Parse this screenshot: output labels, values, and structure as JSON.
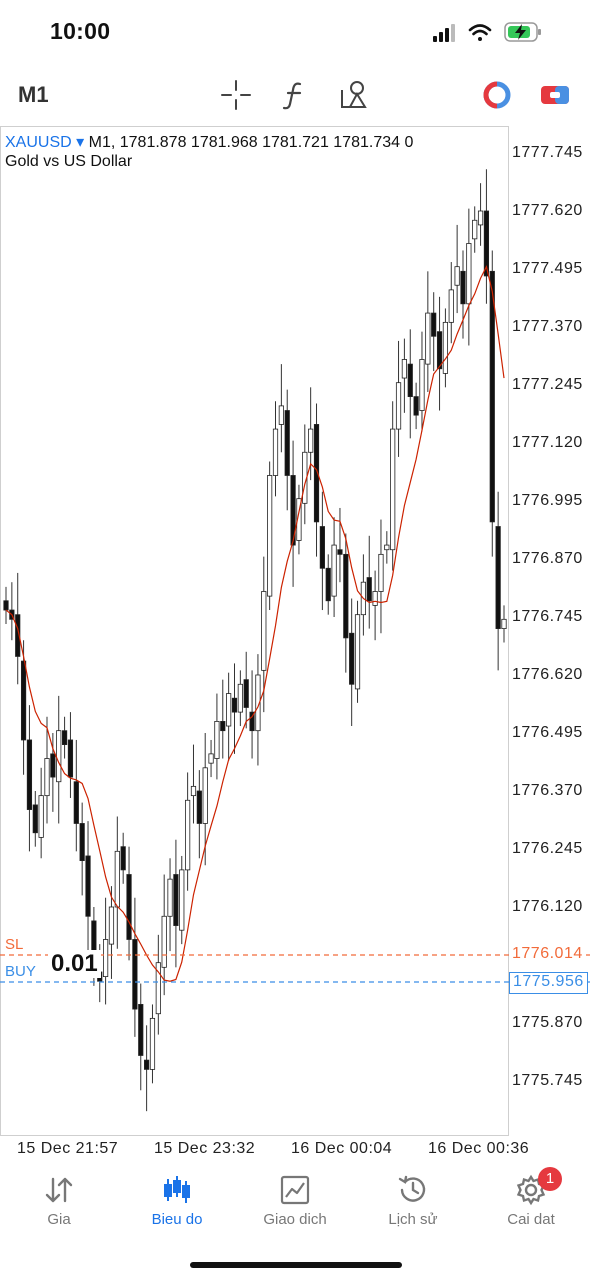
{
  "status_bar": {
    "time": "10:00",
    "icons": [
      "cellular-signal-icon",
      "wifi-icon",
      "battery-charging-icon"
    ]
  },
  "toolbar": {
    "timeframe": "M1",
    "tools": [
      "crosshair-icon",
      "indicators-icon",
      "objects-icon",
      "one-click-trading-icon",
      "trade-panel-icon"
    ]
  },
  "chart": {
    "symbol": "XAUUSD",
    "ohlc_text": "M1, 1781.878 1781.968 1781.721 1781.734 0",
    "description": "Gold vs US Dollar",
    "price_axis": [
      "1777.745",
      "1777.620",
      "1777.495",
      "1777.370",
      "1777.245",
      "1777.120",
      "1776.995",
      "1776.870",
      "1776.745",
      "1776.620",
      "1776.495",
      "1776.370",
      "1776.245",
      "1776.120",
      "1775.870",
      "1775.745"
    ],
    "time_axis": [
      "15 Dec 21:57",
      "15 Dec 23:32",
      "16 Dec 00:04",
      "16 Dec 00:36"
    ],
    "sl": {
      "tag": "SL",
      "price": "1776.014",
      "color": "#f26b3a"
    },
    "buy": {
      "tag": "BUY",
      "price": "1775.956",
      "lot": "0.01",
      "color": "#3a8ee6"
    },
    "ma_color": "#cc2200"
  },
  "chart_data": {
    "type": "candlestick",
    "title": "Gold vs US Dollar",
    "ylim": [
      1775.67,
      1777.82
    ],
    "moving_average_color": "#cc2200",
    "candles_per_label_gap": 17
  },
  "tabs": [
    {
      "label": "Gia",
      "icon": "quotes-arrows-icon",
      "active": false
    },
    {
      "label": "Bieu do",
      "icon": "chart-candles-icon",
      "active": true
    },
    {
      "label": "Giao dich",
      "icon": "trade-chart-icon",
      "active": false
    },
    {
      "label": "Lịch sử",
      "icon": "history-clock-icon",
      "active": false
    },
    {
      "label": "Cai dat",
      "icon": "settings-gear-icon",
      "active": false,
      "badge": "1"
    }
  ]
}
